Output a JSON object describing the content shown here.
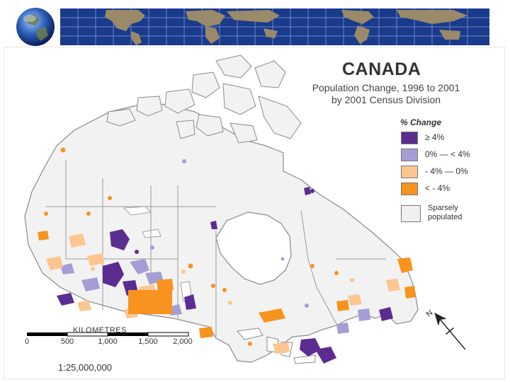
{
  "map": {
    "title": "CANADA",
    "subtitle_line1": "Population Change, 1996 to 2001",
    "subtitle_line2": "by 2001 Census Division"
  },
  "legend": {
    "title": "% Change",
    "items": [
      {
        "label": "≥ 4%",
        "color": "#5b2d91"
      },
      {
        "label": "0% — < 4%",
        "color": "#a59ed4"
      },
      {
        "label": "- 4% — 0%",
        "color": "#fdc590"
      },
      {
        "label": "< - 4%",
        "color": "#f7931e"
      }
    ],
    "sparse": {
      "line1": "Sparsely",
      "line2": "populated",
      "color": "#f0f0f0"
    }
  },
  "scale_bar": {
    "title": "KILOMETRES",
    "ticks": [
      "0",
      "500",
      "1,000",
      "1,500",
      "2,000"
    ],
    "ratio": "1:25,000,000"
  },
  "colors": {
    "land": "#f2f2f2",
    "water": "#ffffff",
    "boundary": "#9a9a9a",
    "banner_ocean": "#1a3a8c",
    "banner_land": "#9a8a6a"
  },
  "icons": {
    "globe": "globe-icon",
    "north_arrow": "north-arrow-icon"
  }
}
